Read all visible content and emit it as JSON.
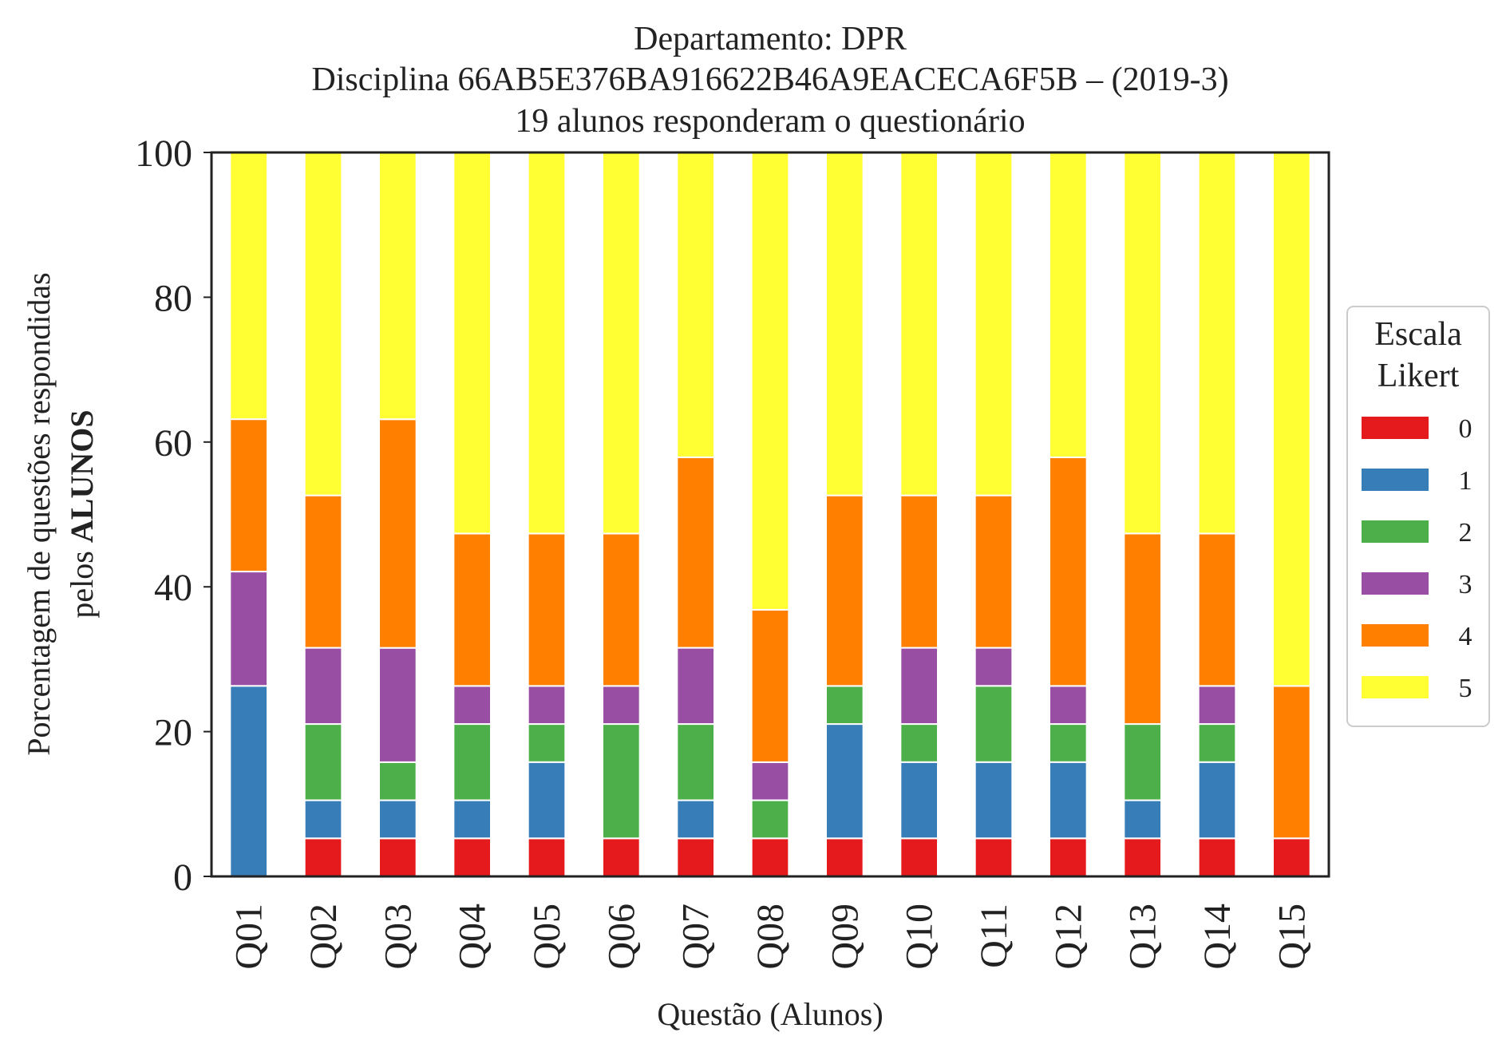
{
  "chart_data": {
    "type": "bar",
    "stacked": true,
    "title_lines": [
      "Departamento: DPR",
      "Disciplina 66AB5E376BA916622B46A9EACECA6F5B – (2019-3)",
      "19 alunos responderam o questionário"
    ],
    "xlabel": "Questão (Alunos)",
    "ylabel_line1": "Porcentagem de questões respondidas",
    "ylabel_line2_prefix": "pelos ",
    "ylabel_line2_bold": "ALUNOS",
    "ylim": [
      0,
      100
    ],
    "yticks": [
      "0",
      "20",
      "40",
      "60",
      "80",
      "100"
    ],
    "grid": false,
    "legend_placement": "right",
    "legend_title_lines": [
      "Escala",
      "Likert"
    ],
    "categories": [
      "Q01",
      "Q02",
      "Q03",
      "Q04",
      "Q05",
      "Q06",
      "Q07",
      "Q08",
      "Q09",
      "Q10",
      "Q11",
      "Q12",
      "Q13",
      "Q14",
      "Q15"
    ],
    "series": [
      {
        "name": "0",
        "color": "#e41a1c",
        "values": [
          0,
          5.26,
          5.26,
          5.26,
          5.26,
          5.26,
          5.26,
          5.26,
          5.26,
          5.26,
          5.26,
          5.26,
          5.26,
          5.26,
          5.26
        ]
      },
      {
        "name": "1",
        "color": "#377eb8",
        "values": [
          26.32,
          5.26,
          5.26,
          5.26,
          10.53,
          0,
          5.26,
          0,
          15.79,
          10.53,
          10.53,
          10.53,
          5.26,
          10.53,
          0
        ]
      },
      {
        "name": "2",
        "color": "#4daf4a",
        "values": [
          0,
          10.53,
          5.26,
          10.53,
          5.26,
          15.79,
          10.53,
          5.26,
          5.26,
          5.26,
          10.53,
          5.26,
          10.53,
          5.26,
          0
        ]
      },
      {
        "name": "3",
        "color": "#984ea3",
        "values": [
          15.79,
          10.53,
          15.79,
          5.26,
          5.26,
          5.26,
          10.53,
          5.26,
          0,
          10.53,
          5.26,
          5.26,
          0,
          5.26,
          0
        ]
      },
      {
        "name": "4",
        "color": "#ff7f00",
        "values": [
          21.05,
          21.05,
          31.58,
          21.05,
          21.05,
          21.05,
          26.32,
          21.05,
          26.32,
          21.05,
          21.05,
          31.58,
          26.32,
          21.05,
          21.05
        ]
      },
      {
        "name": "5",
        "color": "#ffff33",
        "values": [
          36.84,
          47.37,
          36.84,
          52.63,
          52.63,
          52.63,
          42.11,
          63.16,
          47.37,
          47.37,
          47.37,
          42.11,
          52.63,
          52.63,
          73.68
        ]
      }
    ]
  }
}
